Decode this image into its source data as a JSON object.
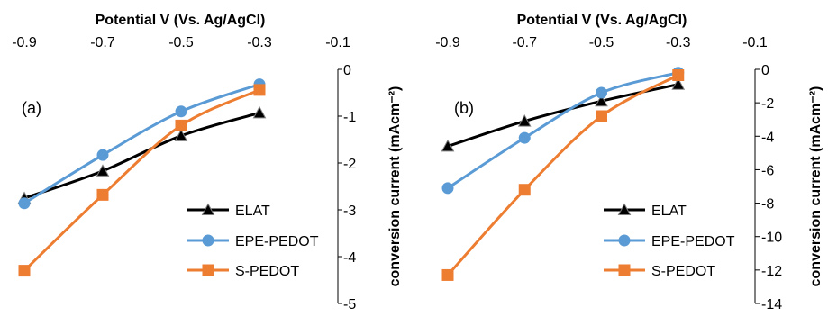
{
  "chart_data": [
    {
      "type": "line",
      "panel_label": "(a)",
      "xlabel": "Potential V (Vs. Ag/AgCl)",
      "ylabel": "conversion current (mAcm⁻²)",
      "x_ticks": [
        "-0.9",
        "-0.7",
        "-0.5",
        "-0.3",
        "-0.1"
      ],
      "y_ticks": [
        "0",
        "-1",
        "-2",
        "-3",
        "-4",
        "-5"
      ],
      "xlim": [
        -0.9,
        -0.1
      ],
      "ylim": [
        -5,
        0
      ],
      "grid": false,
      "legend_position": "bottom-right",
      "series": [
        {
          "name": "ELAT",
          "color": "#000000",
          "marker": "triangle",
          "x": [
            -0.9,
            -0.7,
            -0.5,
            -0.3
          ],
          "y": [
            -2.75,
            -2.17,
            -1.42,
            -0.93
          ]
        },
        {
          "name": "EPE-PEDOT",
          "color": "#5B9BD5",
          "marker": "circle",
          "x": [
            -0.9,
            -0.7,
            -0.5,
            -0.3
          ],
          "y": [
            -2.86,
            -1.83,
            -0.9,
            -0.32
          ]
        },
        {
          "name": "S-PEDOT",
          "color": "#ED7D31",
          "marker": "square",
          "x": [
            -0.9,
            -0.7,
            -0.5,
            -0.3
          ],
          "y": [
            -4.3,
            -2.68,
            -1.2,
            -0.44
          ]
        }
      ]
    },
    {
      "type": "line",
      "panel_label": "(b)",
      "xlabel": "Potential V (Vs. Ag/AgCl)",
      "ylabel": "conversion current (mAcm⁻²)",
      "x_ticks": [
        "-0.9",
        "-0.7",
        "-0.5",
        "-0.3",
        "-0.1"
      ],
      "y_ticks": [
        "0",
        "-2",
        "-4",
        "-6",
        "-8",
        "-10",
        "-12",
        "-14"
      ],
      "xlim": [
        -0.9,
        -0.1
      ],
      "ylim": [
        -14,
        0
      ],
      "grid": false,
      "legend_position": "bottom-right",
      "series": [
        {
          "name": "ELAT",
          "color": "#000000",
          "marker": "triangle",
          "x": [
            -0.9,
            -0.7,
            -0.5,
            -0.3
          ],
          "y": [
            -4.6,
            -3.1,
            -1.9,
            -0.9
          ]
        },
        {
          "name": "EPE-PEDOT",
          "color": "#5B9BD5",
          "marker": "circle",
          "x": [
            -0.9,
            -0.7,
            -0.5,
            -0.3
          ],
          "y": [
            -7.1,
            -4.1,
            -1.4,
            -0.2
          ]
        },
        {
          "name": "S-PEDOT",
          "color": "#ED7D31",
          "marker": "square",
          "x": [
            -0.9,
            -0.7,
            -0.5,
            -0.3
          ],
          "y": [
            -12.3,
            -7.2,
            -2.8,
            -0.35
          ]
        }
      ]
    }
  ]
}
